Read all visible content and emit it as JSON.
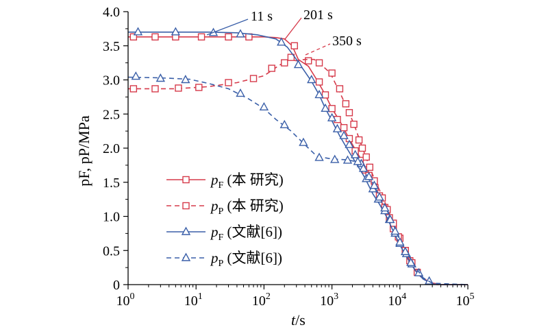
{
  "chart_data": {
    "type": "line",
    "x_scale": "log",
    "xlim": [
      1,
      100000
    ],
    "ylim": [
      0,
      4.0
    ],
    "grid": false,
    "legend_position": "bottom-left",
    "xlabel": {
      "main": "t",
      "unit": "/s"
    },
    "ylabel": {
      "text": "pF, pP/MPa"
    },
    "x_ticks": [
      {
        "value": 1,
        "base": "10",
        "exp": "0"
      },
      {
        "value": 10,
        "base": "10",
        "exp": "1"
      },
      {
        "value": 100,
        "base": "10",
        "exp": "2"
      },
      {
        "value": 1000,
        "base": "10",
        "exp": "3"
      },
      {
        "value": 10000,
        "base": "10",
        "exp": "4"
      },
      {
        "value": 100000,
        "base": "10",
        "exp": "5"
      }
    ],
    "y_ticks": [
      {
        "value": 0,
        "label": "0"
      },
      {
        "value": 0.5,
        "label": "0.5"
      },
      {
        "value": 1.0,
        "label": "1.0"
      },
      {
        "value": 1.5,
        "label": "1.5"
      },
      {
        "value": 2.0,
        "label": "2.0"
      },
      {
        "value": 2.5,
        "label": "2.5"
      },
      {
        "value": 3.0,
        "label": "3.0"
      },
      {
        "value": 3.5,
        "label": "3.5"
      },
      {
        "value": 4.0,
        "label": "4.0"
      }
    ],
    "annotations": [
      {
        "text": "11 s",
        "x": 12,
        "y": 3.68,
        "color": "#3a5fa8"
      },
      {
        "text": "201 s",
        "x": 201,
        "y": 3.62,
        "color": "#d63a4a"
      },
      {
        "text": "350 s",
        "x": 350,
        "y": 3.3,
        "color": "#d63a4a"
      }
    ],
    "series": [
      {
        "name": "p",
        "name_sub": "F",
        "name_suffix": " (本 研究)",
        "color": "#d63a4a",
        "dash": false,
        "marker": "square",
        "line": [
          [
            1,
            3.63
          ],
          [
            10,
            3.63
          ],
          [
            50,
            3.63
          ],
          [
            100,
            3.63
          ],
          [
            150,
            3.62
          ],
          [
            200,
            3.6
          ],
          [
            260,
            3.5
          ],
          [
            320,
            3.3
          ],
          [
            450,
            3.2
          ],
          [
            600,
            3.0
          ],
          [
            800,
            2.78
          ],
          [
            1000,
            2.58
          ],
          [
            1300,
            2.4
          ],
          [
            1700,
            2.18
          ],
          [
            2200,
            1.98
          ],
          [
            2900,
            1.78
          ],
          [
            3500,
            1.6
          ],
          [
            4500,
            1.35
          ],
          [
            6000,
            1.12
          ],
          [
            8000,
            0.82
          ],
          [
            10000,
            0.6
          ],
          [
            12000,
            0.45
          ],
          [
            15000,
            0.28
          ],
          [
            20000,
            0.12
          ],
          [
            28000,
            0.03
          ],
          [
            40000,
            0.0
          ],
          [
            100000,
            0.0
          ]
        ],
        "points": [
          [
            1.2,
            3.63
          ],
          [
            2.5,
            3.63
          ],
          [
            5,
            3.63
          ],
          [
            12,
            3.63
          ],
          [
            30,
            3.63
          ],
          [
            60,
            3.63
          ],
          [
            280,
            3.5
          ],
          [
            450,
            3.28
          ],
          [
            650,
            2.97
          ],
          [
            800,
            2.78
          ],
          [
            1000,
            2.58
          ],
          [
            1200,
            2.42
          ],
          [
            1500,
            2.3
          ],
          [
            1800,
            2.14
          ],
          [
            2200,
            1.96
          ],
          [
            2600,
            1.82
          ],
          [
            3100,
            1.68
          ],
          [
            3500,
            1.6
          ],
          [
            4300,
            1.42
          ],
          [
            5000,
            1.3
          ],
          [
            6000,
            1.13
          ],
          [
            7000,
            0.98
          ],
          [
            8000,
            0.82
          ],
          [
            10000,
            0.68
          ],
          [
            12000,
            0.5
          ],
          [
            14000,
            0.35
          ],
          [
            18000,
            0.18
          ]
        ]
      },
      {
        "name": "p",
        "name_sub": "P",
        "name_suffix": " (本 研究)",
        "color": "#d63a4a",
        "dash": true,
        "marker": "square",
        "line": [
          [
            1,
            2.87
          ],
          [
            5,
            2.87
          ],
          [
            15,
            2.9
          ],
          [
            40,
            2.96
          ],
          [
            100,
            3.06
          ],
          [
            160,
            3.2
          ],
          [
            230,
            3.3
          ],
          [
            300,
            3.28
          ],
          [
            400,
            3.3
          ],
          [
            550,
            3.3
          ],
          [
            700,
            3.22
          ],
          [
            900,
            3.12
          ],
          [
            1000,
            3.05
          ],
          [
            1300,
            2.82
          ],
          [
            1800,
            2.52
          ],
          [
            2200,
            2.3
          ],
          [
            2700,
            2.05
          ],
          [
            3300,
            1.82
          ],
          [
            4200,
            1.55
          ],
          [
            5500,
            1.3
          ],
          [
            7000,
            1.05
          ],
          [
            9000,
            0.78
          ],
          [
            11000,
            0.55
          ],
          [
            14000,
            0.35
          ],
          [
            18000,
            0.18
          ],
          [
            25000,
            0.04
          ],
          [
            35000,
            0.0
          ],
          [
            100000,
            0.0
          ]
        ],
        "points": [
          [
            1.2,
            2.87
          ],
          [
            2.5,
            2.87
          ],
          [
            5.5,
            2.88
          ],
          [
            11,
            2.89
          ],
          [
            30,
            2.96
          ],
          [
            70,
            3.02
          ],
          [
            130,
            3.17
          ],
          [
            200,
            3.25
          ],
          [
            250,
            3.33
          ],
          [
            650,
            3.25
          ],
          [
            1000,
            3.1
          ],
          [
            1300,
            2.87
          ],
          [
            1600,
            2.65
          ],
          [
            1800,
            2.52
          ],
          [
            2100,
            2.35
          ],
          [
            2500,
            2.12
          ],
          [
            2800,
            2.0
          ],
          [
            3200,
            1.87
          ],
          [
            3600,
            1.72
          ],
          [
            4200,
            1.52
          ],
          [
            5500,
            1.27
          ],
          [
            6500,
            1.1
          ],
          [
            8000,
            0.9
          ],
          [
            9500,
            0.7
          ],
          [
            12000,
            0.5
          ],
          [
            15000,
            0.32
          ]
        ]
      },
      {
        "name": "p",
        "name_sub": "F",
        "name_suffix": " (文献[6])",
        "color": "#3a5fa8",
        "dash": false,
        "marker": "triangle",
        "line": [
          [
            1,
            3.7
          ],
          [
            5,
            3.7
          ],
          [
            15,
            3.7
          ],
          [
            40,
            3.69
          ],
          [
            80,
            3.66
          ],
          [
            150,
            3.6
          ],
          [
            220,
            3.48
          ],
          [
            300,
            3.3
          ],
          [
            400,
            3.12
          ],
          [
            500,
            2.98
          ],
          [
            650,
            2.78
          ],
          [
            800,
            2.58
          ],
          [
            1000,
            2.4
          ],
          [
            1300,
            2.18
          ],
          [
            1700,
            1.98
          ],
          [
            2200,
            1.8
          ],
          [
            3000,
            1.58
          ],
          [
            4000,
            1.33
          ],
          [
            5000,
            1.18
          ],
          [
            6500,
            0.98
          ],
          [
            8000,
            0.78
          ],
          [
            10000,
            0.58
          ],
          [
            13000,
            0.38
          ],
          [
            17000,
            0.2
          ],
          [
            22000,
            0.08
          ],
          [
            30000,
            0.01
          ],
          [
            40000,
            0.0
          ],
          [
            100000,
            0.0
          ]
        ],
        "points": [
          [
            1.4,
            3.7
          ],
          [
            5,
            3.7
          ],
          [
            18,
            3.69
          ],
          [
            45,
            3.67
          ],
          [
            180,
            3.55
          ],
          [
            320,
            3.22
          ],
          [
            500,
            3.0
          ],
          [
            650,
            2.78
          ],
          [
            800,
            2.58
          ],
          [
            1000,
            2.44
          ],
          [
            1200,
            2.28
          ],
          [
            1500,
            2.18
          ],
          [
            1800,
            2.05
          ],
          [
            2200,
            1.9
          ],
          [
            2700,
            1.77
          ],
          [
            3200,
            1.55
          ],
          [
            4000,
            1.4
          ],
          [
            4800,
            1.25
          ],
          [
            6000,
            1.08
          ],
          [
            7000,
            0.95
          ],
          [
            8500,
            0.75
          ],
          [
            10000,
            0.6
          ],
          [
            12500,
            0.45
          ],
          [
            15000,
            0.3
          ],
          [
            19000,
            0.17
          ],
          [
            27000,
            0.05
          ]
        ]
      },
      {
        "name": "p",
        "name_sub": "P",
        "name_suffix": " (文献[6])",
        "color": "#3a5fa8",
        "dash": true,
        "marker": "triangle",
        "line": [
          [
            1,
            3.04
          ],
          [
            3,
            3.03
          ],
          [
            8,
            3.01
          ],
          [
            15,
            2.95
          ],
          [
            30,
            2.87
          ],
          [
            60,
            2.72
          ],
          [
            100,
            2.58
          ],
          [
            150,
            2.42
          ],
          [
            250,
            2.25
          ],
          [
            400,
            2.05
          ],
          [
            600,
            1.88
          ],
          [
            1000,
            1.84
          ],
          [
            1600,
            1.83
          ],
          [
            2400,
            1.8
          ],
          [
            3000,
            1.68
          ],
          [
            3500,
            1.58
          ],
          [
            4200,
            1.45
          ],
          [
            5000,
            1.3
          ],
          [
            6500,
            1.1
          ],
          [
            8000,
            0.88
          ],
          [
            10000,
            0.65
          ],
          [
            13000,
            0.45
          ],
          [
            17000,
            0.25
          ],
          [
            22000,
            0.1
          ],
          [
            30000,
            0.02
          ],
          [
            100000,
            0.0
          ]
        ],
        "points": [
          [
            1.3,
            3.05
          ],
          [
            3,
            3.02
          ],
          [
            7,
            3.0
          ],
          [
            45,
            2.8
          ],
          [
            100,
            2.6
          ],
          [
            200,
            2.34
          ],
          [
            380,
            2.08
          ],
          [
            650,
            1.86
          ],
          [
            1100,
            1.83
          ],
          [
            1700,
            1.82
          ],
          [
            2400,
            1.8
          ],
          [
            2900,
            1.7
          ],
          [
            3500,
            1.58
          ],
          [
            4200,
            1.45
          ],
          [
            5000,
            1.28
          ],
          [
            6000,
            1.12
          ],
          [
            7200,
            0.95
          ],
          [
            8500,
            0.78
          ],
          [
            10000,
            0.62
          ],
          [
            12000,
            0.48
          ],
          [
            14500,
            0.32
          ]
        ]
      }
    ]
  }
}
